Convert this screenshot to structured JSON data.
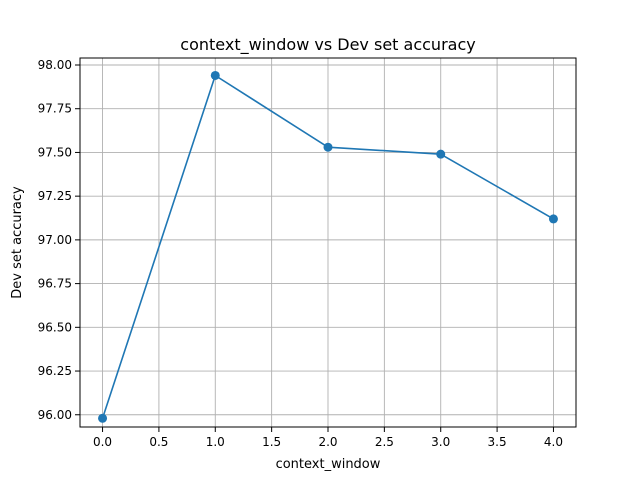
{
  "chart_data": {
    "type": "line",
    "title": "context_window vs Dev set accuracy",
    "xlabel": "context_window",
    "ylabel": "Dev set accuracy",
    "x": [
      0,
      1,
      2,
      3,
      4
    ],
    "series": [
      {
        "values": [
          95.98,
          97.94,
          97.53,
          97.49,
          97.12
        ],
        "color": "#1f77b4"
      }
    ],
    "xlim": [
      -0.2,
      4.2
    ],
    "ylim": [
      95.93,
      98.04
    ],
    "xticks": [
      0.0,
      0.5,
      1.0,
      1.5,
      2.0,
      2.5,
      3.0,
      3.5,
      4.0
    ],
    "xtick_labels": [
      "0.0",
      "0.5",
      "1.0",
      "1.5",
      "2.0",
      "2.5",
      "3.0",
      "3.5",
      "4.0"
    ],
    "yticks": [
      96.0,
      96.25,
      96.5,
      96.75,
      97.0,
      97.25,
      97.5,
      97.75,
      98.0
    ],
    "ytick_labels": [
      "96.00",
      "96.25",
      "96.50",
      "96.75",
      "97.00",
      "97.25",
      "97.50",
      "97.75",
      "98.00"
    ],
    "grid": true,
    "legend": false,
    "marker": "circle"
  }
}
